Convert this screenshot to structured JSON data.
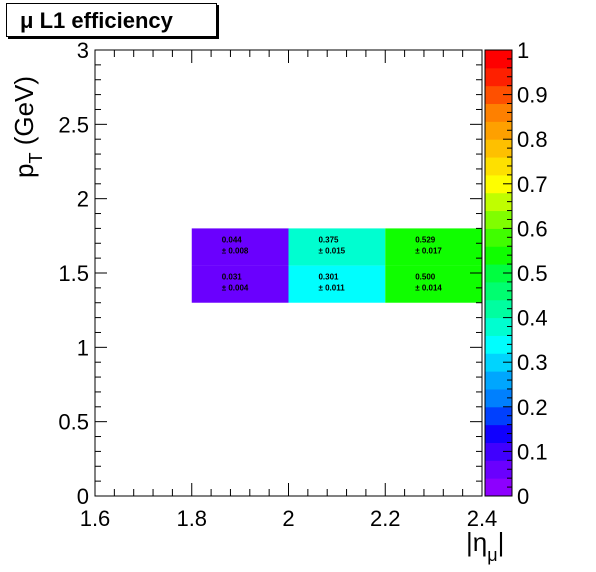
{
  "chart_data": {
    "type": "heatmap",
    "title": "μ L1 efficiency",
    "xlabel": "|η_μ|",
    "ylabel": "p_T (GeV)",
    "xlim": [
      1.6,
      2.4
    ],
    "ylim": [
      0,
      3
    ],
    "x_ticks": [
      "1.6",
      "1.8",
      "2",
      "2.2",
      "2.4"
    ],
    "y_ticks": [
      "0",
      "0.5",
      "1",
      "1.5",
      "2",
      "2.5",
      "3"
    ],
    "z_range": [
      0,
      1
    ],
    "z_ticks": [
      "0",
      "0.1",
      "0.2",
      "0.3",
      "0.4",
      "0.5",
      "0.6",
      "0.7",
      "0.8",
      "0.9",
      "1"
    ],
    "palette": [
      "#8d00fe",
      "#6a00fe",
      "#4000fe",
      "#1000fe",
      "#0040fe",
      "#0080fe",
      "#00a6fe",
      "#00d4fe",
      "#00fefe",
      "#00fed0",
      "#00fea0",
      "#00fe70",
      "#00fe40",
      "#10fe00",
      "#40fe00",
      "#80fe00",
      "#c0fe00",
      "#fefe00",
      "#fee000",
      "#fec000",
      "#fea000",
      "#fe8000",
      "#fe5000",
      "#fe2000",
      "#fe0000"
    ],
    "cells": [
      {
        "x": [
          1.8,
          2.0
        ],
        "y": [
          1.55,
          1.8
        ],
        "value": 0.044,
        "label": "0.044",
        "error": "± 0.008",
        "color": "#6a00fe"
      },
      {
        "x": [
          2.0,
          2.2
        ],
        "y": [
          1.55,
          1.8
        ],
        "value": 0.375,
        "label": "0.375",
        "error": "± 0.015",
        "color": "#00fed0"
      },
      {
        "x": [
          2.2,
          2.4
        ],
        "y": [
          1.55,
          1.8
        ],
        "value": 0.529,
        "label": "0.529",
        "error": "± 0.017",
        "color": "#10fe00"
      },
      {
        "x": [
          1.8,
          2.0
        ],
        "y": [
          1.3,
          1.55
        ],
        "value": 0.031,
        "label": "0.031",
        "error": "± 0.004",
        "color": "#6a00fe"
      },
      {
        "x": [
          2.0,
          2.2
        ],
        "y": [
          1.3,
          1.55
        ],
        "value": 0.301,
        "label": "0.301",
        "error": "± 0.011",
        "color": "#00fefe"
      },
      {
        "x": [
          2.2,
          2.4
        ],
        "y": [
          1.3,
          1.55
        ],
        "value": 0.5,
        "label": "0.500",
        "error": "± 0.014",
        "color": "#10fe00"
      }
    ]
  }
}
